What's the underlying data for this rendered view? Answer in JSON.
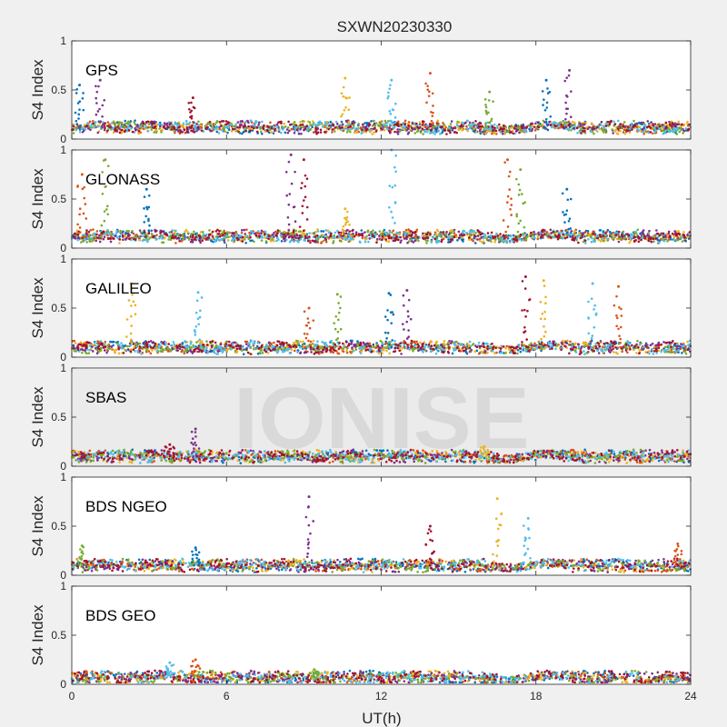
{
  "title": "SXWN20230330",
  "watermark": "IONISE",
  "xlabel": "UT(h)",
  "xticks": [
    0,
    6,
    12,
    18,
    24
  ],
  "xlim": [
    0,
    24
  ],
  "ylim": [
    0,
    1
  ],
  "yticks": [
    0,
    0.5,
    1
  ],
  "ytick_labels": [
    "0",
    "0.5",
    "1"
  ],
  "colors": [
    "#0072BD",
    "#D95319",
    "#EDB120",
    "#7E2F8E",
    "#77AC30",
    "#4DBEEE",
    "#A2142F"
  ],
  "chart_data": [
    {
      "type": "scatter",
      "panel_label": "GPS",
      "ylabel": "S4 Index",
      "xlim": [
        0,
        24
      ],
      "ylim": [
        0,
        1
      ],
      "baseline": 0.12,
      "spikes": [
        {
          "x": 0.3,
          "y": 0.55
        },
        {
          "x": 1.1,
          "y": 0.6
        },
        {
          "x": 4.7,
          "y": 0.42
        },
        {
          "x": 10.6,
          "y": 0.62
        },
        {
          "x": 12.4,
          "y": 0.6
        },
        {
          "x": 13.9,
          "y": 0.67
        },
        {
          "x": 16.2,
          "y": 0.48
        },
        {
          "x": 18.4,
          "y": 0.6
        },
        {
          "x": 19.3,
          "y": 0.7
        }
      ]
    },
    {
      "type": "scatter",
      "panel_label": "GLONASS",
      "ylabel": "S4 Index",
      "xlim": [
        0,
        24
      ],
      "ylim": [
        0,
        1
      ],
      "baseline": 0.12,
      "spikes": [
        {
          "x": 0.4,
          "y": 0.75
        },
        {
          "x": 1.3,
          "y": 0.9
        },
        {
          "x": 2.9,
          "y": 0.6
        },
        {
          "x": 8.5,
          "y": 0.95
        },
        {
          "x": 9.0,
          "y": 0.9
        },
        {
          "x": 10.6,
          "y": 0.4
        },
        {
          "x": 12.4,
          "y": 1.0
        },
        {
          "x": 16.9,
          "y": 0.9
        },
        {
          "x": 17.4,
          "y": 0.8
        },
        {
          "x": 19.2,
          "y": 0.6
        }
      ]
    },
    {
      "type": "scatter",
      "panel_label": "GALILEO",
      "ylabel": "S4 Index",
      "xlim": [
        0,
        24
      ],
      "ylim": [
        0,
        1
      ],
      "baseline": 0.1,
      "spikes": [
        {
          "x": 2.3,
          "y": 0.75
        },
        {
          "x": 4.9,
          "y": 0.66
        },
        {
          "x": 9.2,
          "y": 0.5
        },
        {
          "x": 10.3,
          "y": 0.64
        },
        {
          "x": 12.3,
          "y": 0.65
        },
        {
          "x": 13.0,
          "y": 0.68
        },
        {
          "x": 17.6,
          "y": 0.82
        },
        {
          "x": 18.3,
          "y": 0.78
        },
        {
          "x": 20.2,
          "y": 0.75
        },
        {
          "x": 21.2,
          "y": 0.72
        }
      ]
    },
    {
      "type": "scatter",
      "panel_label": "SBAS",
      "ylabel": "S4 Index",
      "xlim": [
        0,
        24
      ],
      "ylim": [
        0,
        1
      ],
      "baseline": 0.1,
      "spikes": [
        {
          "x": 4.8,
          "y": 0.38
        },
        {
          "x": 3.8,
          "y": 0.22
        },
        {
          "x": 16.0,
          "y": 0.2
        }
      ]
    },
    {
      "type": "scatter",
      "panel_label": "BDS NGEO",
      "ylabel": "S4 Index",
      "xlim": [
        0,
        24
      ],
      "ylim": [
        0,
        1
      ],
      "baseline": 0.1,
      "spikes": [
        {
          "x": 0.4,
          "y": 0.3
        },
        {
          "x": 4.8,
          "y": 0.28
        },
        {
          "x": 9.2,
          "y": 0.8
        },
        {
          "x": 13.9,
          "y": 0.5
        },
        {
          "x": 16.5,
          "y": 0.78
        },
        {
          "x": 17.7,
          "y": 0.58
        },
        {
          "x": 23.5,
          "y": 0.32
        }
      ]
    },
    {
      "type": "scatter",
      "panel_label": "BDS GEO",
      "ylabel": "S4 Index",
      "xlim": [
        0,
        24
      ],
      "ylim": [
        0,
        1
      ],
      "baseline": 0.07,
      "spikes": [
        {
          "x": 3.8,
          "y": 0.22
        },
        {
          "x": 4.8,
          "y": 0.25
        },
        {
          "x": 9.4,
          "y": 0.15
        }
      ]
    }
  ]
}
